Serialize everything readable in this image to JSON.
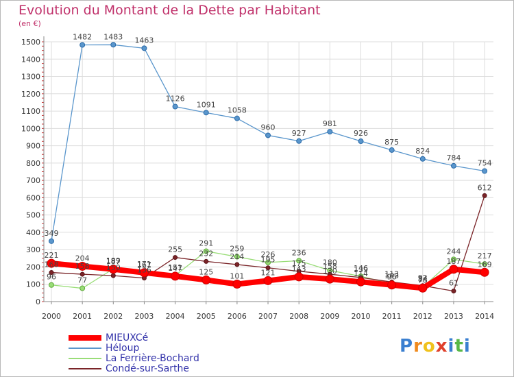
{
  "title": "Evolution du Montant de la Dette par Habitant",
  "unit": "(en €)",
  "logo": {
    "text": "Proxiti",
    "letters": [
      "P",
      "r",
      "o",
      "x",
      "i",
      "t",
      "i"
    ],
    "colors": [
      "#3a7fd0",
      "#f08a1d",
      "#f0c21d",
      "#e0402b",
      "#3a7fd0",
      "#58b846",
      "#3a7fd0"
    ]
  },
  "colors": {
    "grid": "#dddddd",
    "axis": "#888888",
    "title": "#c0306a"
  },
  "chart_data": {
    "type": "line",
    "title": "Evolution du Montant de la Dette par Habitant",
    "ylabel": "(en €)",
    "ylim": [
      0,
      1500
    ],
    "yticks": [
      0,
      100,
      200,
      300,
      400,
      500,
      600,
      700,
      800,
      900,
      1000,
      1100,
      1200,
      1300,
      1400,
      1500
    ],
    "x": [
      "2000",
      "2001",
      "2002",
      "2003",
      "2004",
      "2005",
      "2006",
      "2007",
      "2008",
      "2009",
      "2010",
      "2011",
      "2012",
      "2013",
      "2014"
    ],
    "grid": true,
    "legend_position": "bottom-left",
    "series": [
      {
        "name": "MIEUXCé",
        "color": "#ff0000",
        "values": [
          221,
          204,
          187,
          167,
          147,
          125,
          101,
          121,
          143,
          130,
          114,
          96,
          78,
          187,
          169
        ],
        "labels": [
          "221",
          "204",
          "187",
          "167",
          "147",
          "125",
          "101",
          "121",
          "143",
          "130",
          "114",
          "96",
          "78",
          "187",
          "169"
        ]
      },
      {
        "name": "Héloup",
        "color": "#5a96cc",
        "values": [
          349,
          1482,
          1483,
          1463,
          1126,
          1091,
          1058,
          960,
          927,
          981,
          926,
          875,
          824,
          784,
          754
        ],
        "labels": [
          "349",
          "1482",
          "1483",
          "1463",
          "1126",
          "1091",
          "1058",
          "960",
          "927",
          "981",
          "926",
          "875",
          "824",
          "784",
          "754"
        ]
      },
      {
        "name": "La Ferrière-Bochard",
        "color": "#99dd77",
        "values": [
          96,
          77,
          189,
          171,
          151,
          291,
          259,
          226,
          236,
          180,
          146,
          103,
          84,
          244,
          217
        ],
        "labels": [
          "96",
          "77",
          "189",
          "171",
          "151",
          "291",
          "259",
          "226",
          "236",
          "180",
          "146",
          "103",
          "84",
          "244",
          "217"
        ]
      },
      {
        "name": "Condé-sur-Sarthe",
        "color": "#7a2428",
        "values": [
          168,
          158,
          150,
          136,
          255,
          232,
          214,
          195,
          175,
          158,
          139,
          113,
          92,
          61,
          612
        ],
        "labels": [
          "168",
          "158",
          "150",
          "136",
          "255",
          "232",
          "214",
          "195",
          "175",
          "158",
          "139",
          "113",
          "92",
          "61",
          "612"
        ]
      }
    ]
  }
}
